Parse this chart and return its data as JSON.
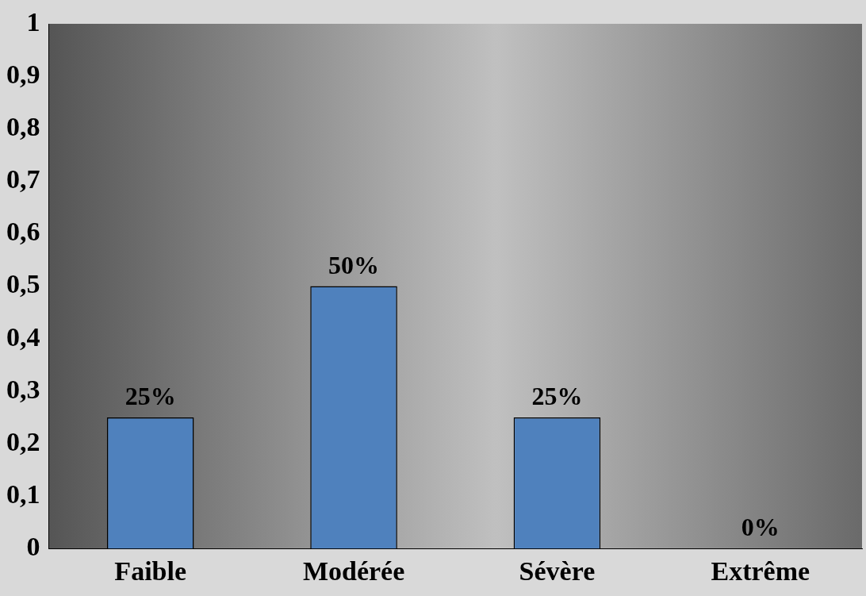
{
  "chart_data": {
    "type": "bar",
    "categories": [
      "Faible",
      "Modérée",
      "Sévère",
      "Extrême"
    ],
    "values": [
      0.25,
      0.5,
      0.25,
      0
    ],
    "value_labels": [
      "25%",
      "50%",
      "25%",
      "0%"
    ],
    "color": "#4f81bd",
    "ylim": [
      0,
      1
    ],
    "yticks": [
      0,
      {
        "value": 0.1,
        "label": "0,1"
      },
      {
        "value": 0.2,
        "label": "0,2"
      },
      {
        "value": 0.3,
        "label": "0,3"
      },
      {
        "value": 0.4,
        "label": "0,4"
      },
      {
        "value": 0.5,
        "label": "0,5"
      },
      {
        "value": 0.6,
        "label": "0,6"
      },
      {
        "value": 0.7,
        "label": "0,7"
      },
      {
        "value": 0.8,
        "label": "0,8"
      },
      {
        "value": 0.9,
        "label": "0,9"
      },
      1
    ],
    "grid": false,
    "legend": false
  }
}
